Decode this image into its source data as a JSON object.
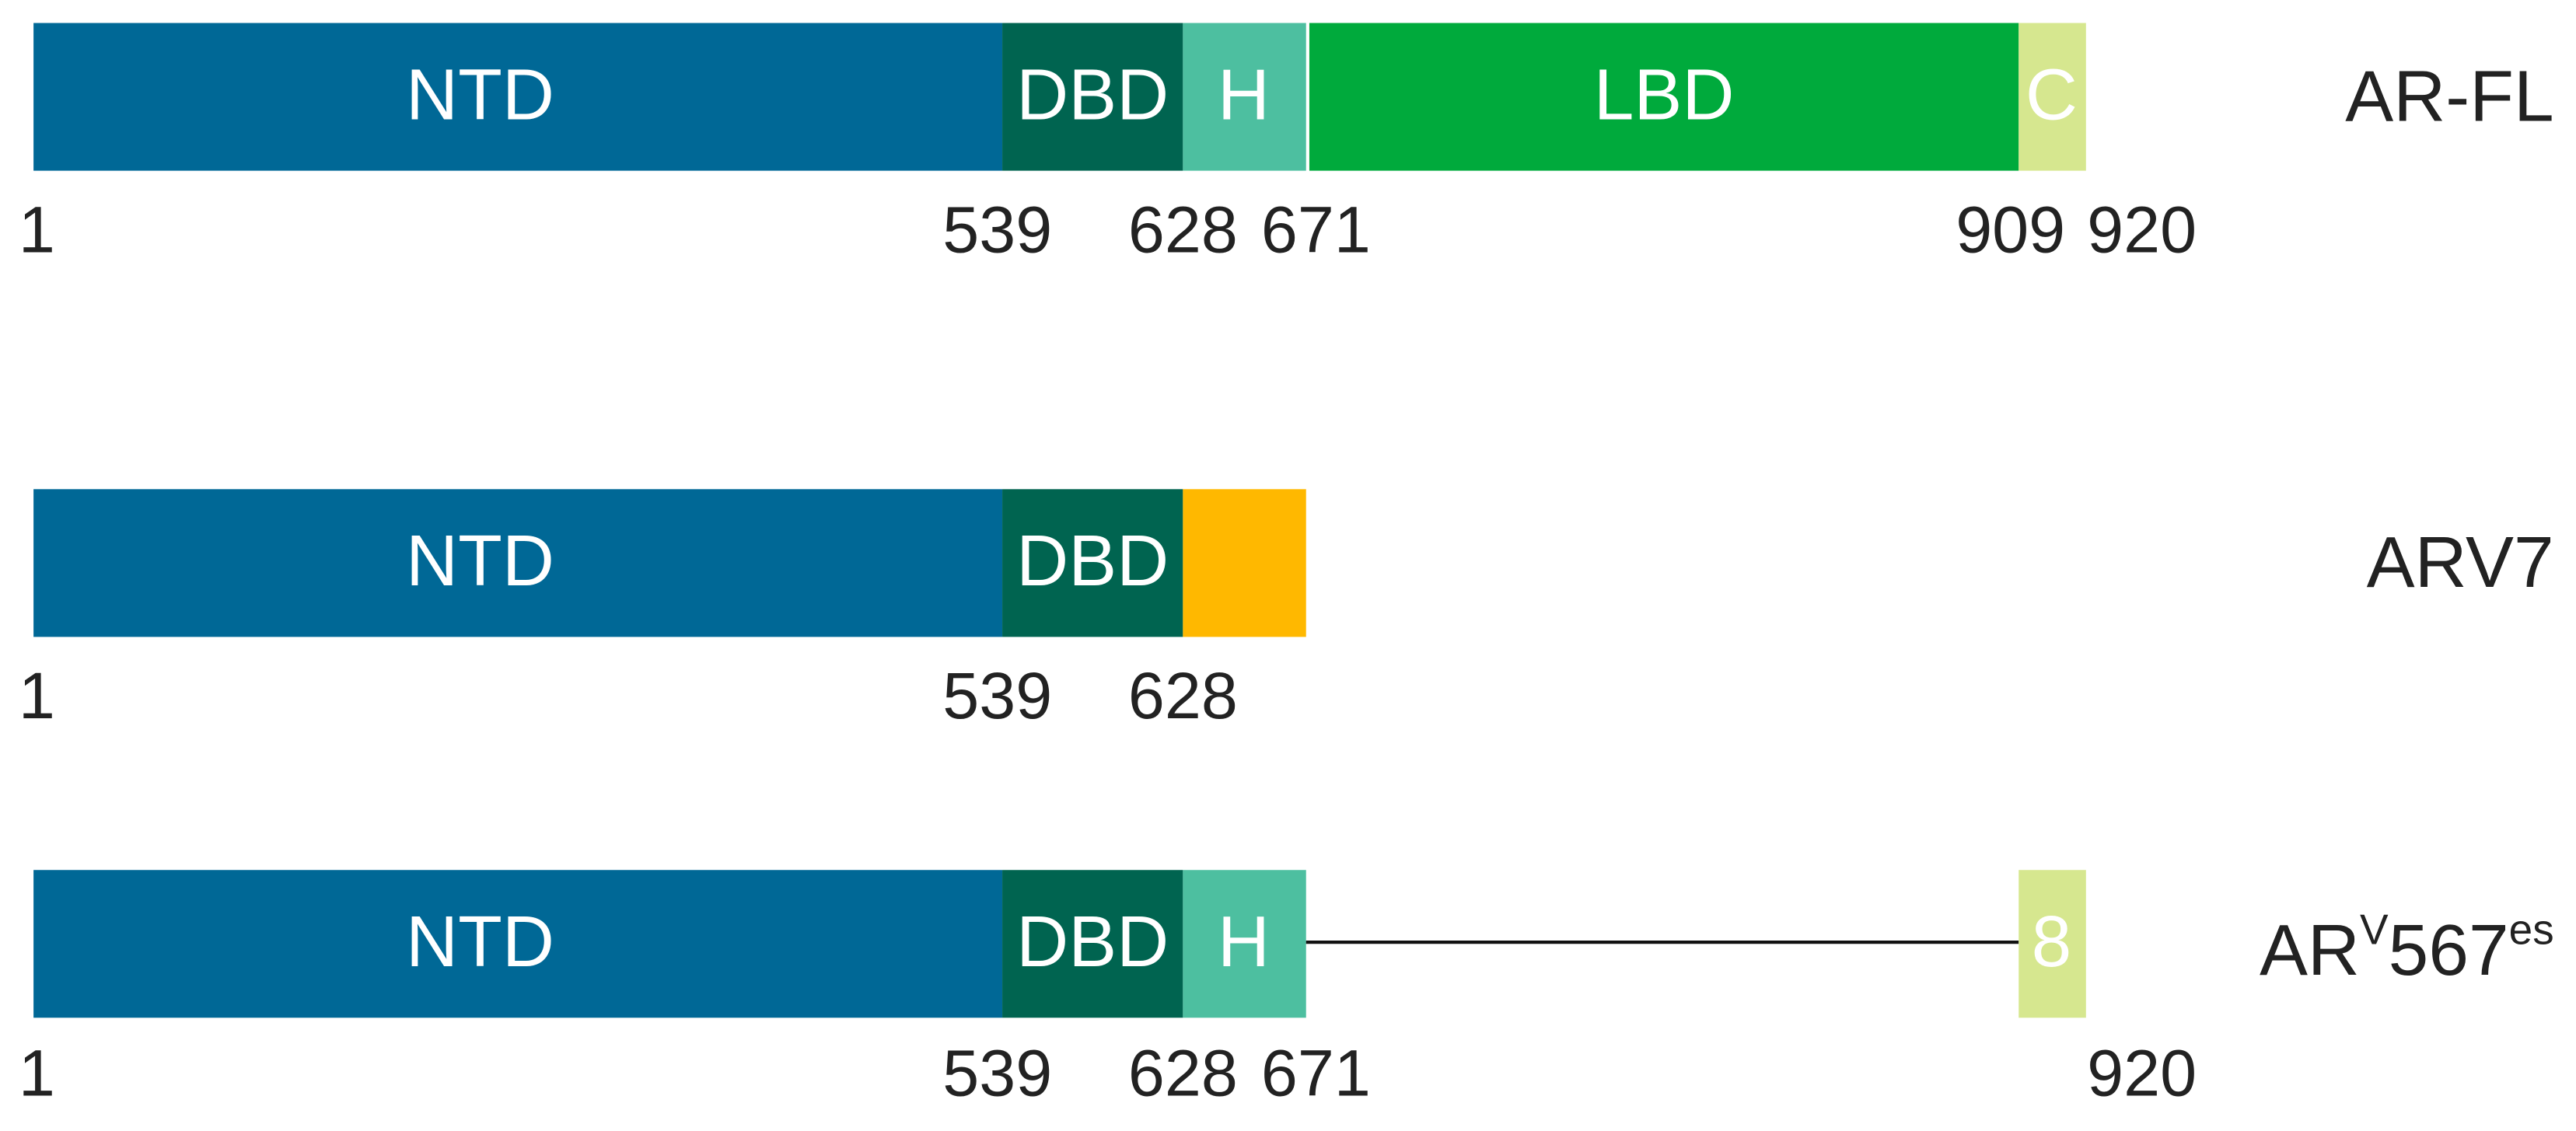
{
  "rows": [
    {
      "name": "AR-FL",
      "domains": [
        "NTD",
        "DBD",
        "H",
        "LBD",
        "C"
      ],
      "positions": [
        1,
        539,
        628,
        671,
        909,
        920
      ]
    },
    {
      "name": "ARV7",
      "domains": [
        "NTD",
        "DBD"
      ],
      "positions": [
        1,
        539,
        628
      ]
    },
    {
      "name": {
        "base": "AR",
        "sup1": "V",
        "main": "567",
        "sup2": "es"
      },
      "domains": [
        "NTD",
        "DBD",
        "H",
        "8"
      ],
      "positions": [
        1,
        539,
        628,
        671,
        920
      ]
    }
  ]
}
